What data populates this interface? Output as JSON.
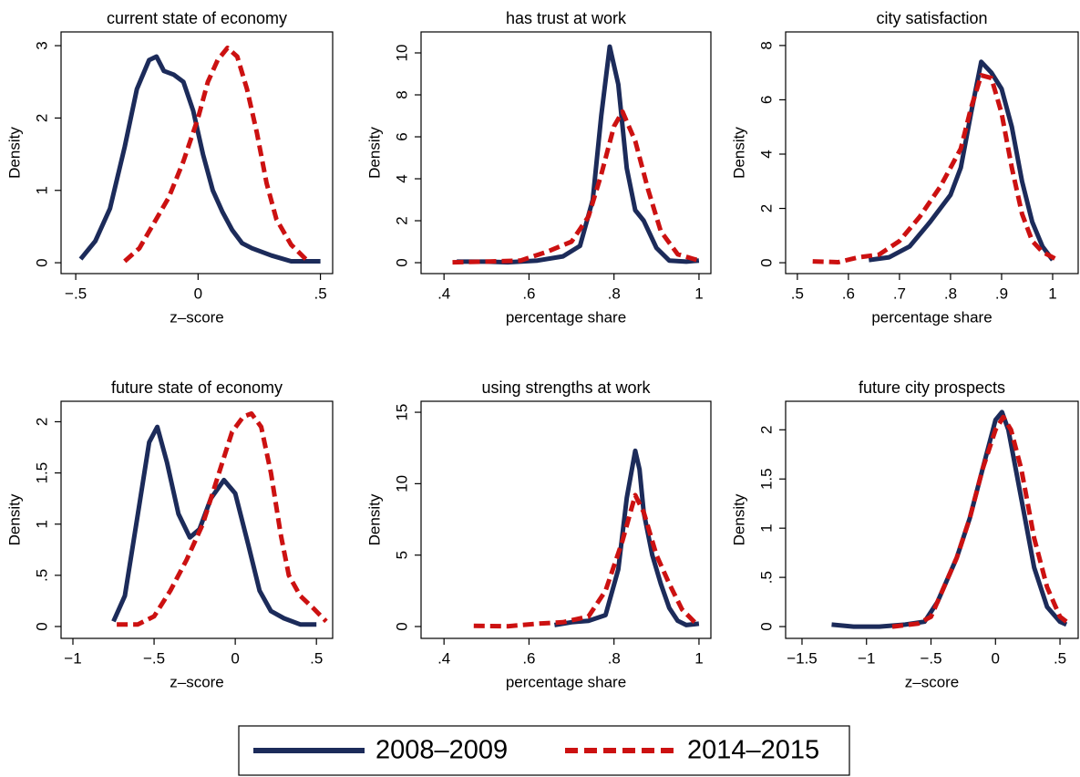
{
  "chart_data": [
    {
      "type": "line",
      "title": "current state of economy",
      "x_label": "z–score",
      "y_label": "Density",
      "xlim": [
        -0.56,
        0.55
      ],
      "ylim": [
        -0.15,
        3.19
      ],
      "xticks": [
        {
          "value": -0.5,
          "label": "−.5"
        },
        0,
        {
          "value": 0.5,
          "label": ".5"
        }
      ],
      "yticks": [
        0,
        1,
        2,
        3
      ],
      "series": [
        {
          "name": "2008–2009",
          "color": "#1c2b5a",
          "linestyle": "solid",
          "x": [
            -0.48,
            -0.42,
            -0.36,
            -0.3,
            -0.25,
            -0.2,
            -0.17,
            -0.14,
            -0.1,
            -0.06,
            -0.02,
            0.02,
            0.06,
            0.1,
            0.14,
            0.18,
            0.22,
            0.3,
            0.38,
            0.5
          ],
          "values": [
            0.05,
            0.3,
            0.75,
            1.6,
            2.4,
            2.8,
            2.85,
            2.65,
            2.6,
            2.5,
            2.1,
            1.5,
            1.0,
            0.7,
            0.45,
            0.27,
            0.2,
            0.1,
            0.02,
            0.02
          ]
        },
        {
          "name": "2014–2015",
          "color": "#cc1111",
          "linestyle": "dashed",
          "x": [
            -0.3,
            -0.24,
            -0.18,
            -0.12,
            -0.06,
            0,
            0.04,
            0.08,
            0.12,
            0.16,
            0.2,
            0.24,
            0.28,
            0.32,
            0.38,
            0.44
          ],
          "values": [
            0.02,
            0.2,
            0.55,
            0.9,
            1.4,
            2.0,
            2.5,
            2.8,
            2.97,
            2.85,
            2.4,
            1.8,
            1.1,
            0.6,
            0.25,
            0.05
          ]
        }
      ]
    },
    {
      "type": "line",
      "title": "has trust at work",
      "x_label": "percentage share",
      "y_label": "Density",
      "xlim": [
        0.346,
        1.028
      ],
      "ylim": [
        -0.52,
        11
      ],
      "xticks": [
        {
          "value": 0.4,
          "label": ".4"
        },
        {
          "value": 0.6,
          "label": ".6"
        },
        {
          "value": 0.8,
          "label": ".8"
        },
        1
      ],
      "yticks": [
        0,
        2,
        4,
        6,
        8,
        10
      ],
      "series": [
        {
          "color": "#1c2b5a",
          "linestyle": "solid",
          "x": [
            0.43,
            0.5,
            0.55,
            0.62,
            0.68,
            0.72,
            0.75,
            0.77,
            0.79,
            0.81,
            0.83,
            0.85,
            0.87,
            0.9,
            0.93,
            0.97,
            1.0
          ],
          "values": [
            0.05,
            0.05,
            0.02,
            0.1,
            0.3,
            0.8,
            3,
            7,
            10.3,
            8.5,
            4.5,
            2.5,
            2,
            0.7,
            0.1,
            0.05,
            0.1
          ]
        },
        {
          "color": "#cc1111",
          "linestyle": "dashed",
          "x": [
            0.42,
            0.5,
            0.58,
            0.64,
            0.7,
            0.74,
            0.77,
            0.8,
            0.82,
            0.85,
            0.88,
            0.91,
            0.95,
            1.0
          ],
          "values": [
            0.02,
            0.05,
            0.1,
            0.5,
            1.0,
            2.2,
            4.2,
            6.5,
            7.2,
            5.8,
            3.5,
            1.5,
            0.4,
            0.1
          ]
        }
      ]
    },
    {
      "type": "line",
      "title": "city satisfaction",
      "x_label": "percentage share",
      "y_label": "Density",
      "xlim": [
        0.477,
        1.05
      ],
      "ylim": [
        -0.4,
        8.5
      ],
      "xticks": [
        {
          "value": 0.5,
          "label": ".5"
        },
        {
          "value": 0.6,
          "label": ".6"
        },
        {
          "value": 0.7,
          "label": ".7"
        },
        {
          "value": 0.8,
          "label": ".8"
        },
        {
          "value": 0.9,
          "label": ".9"
        },
        1
      ],
      "yticks": [
        0,
        2,
        4,
        6,
        8
      ],
      "series": [
        {
          "color": "#1c2b5a",
          "linestyle": "solid",
          "x": [
            0.64,
            0.68,
            0.72,
            0.76,
            0.8,
            0.82,
            0.84,
            0.86,
            0.88,
            0.9,
            0.92,
            0.94,
            0.96,
            0.98,
            1.0
          ],
          "values": [
            0.1,
            0.2,
            0.6,
            1.5,
            2.5,
            3.5,
            5.5,
            7.4,
            7.0,
            6.4,
            5.0,
            3.0,
            1.5,
            0.6,
            0.1
          ]
        },
        {
          "color": "#cc1111",
          "linestyle": "dashed",
          "x": [
            0.53,
            0.58,
            0.62,
            0.66,
            0.7,
            0.74,
            0.78,
            0.82,
            0.84,
            0.86,
            0.88,
            0.9,
            0.92,
            0.94,
            0.96,
            0.98,
            1.01
          ],
          "values": [
            0.05,
            0.02,
            0.2,
            0.3,
            0.8,
            1.7,
            2.8,
            4.2,
            5.7,
            6.9,
            6.8,
            5.5,
            3.5,
            1.8,
            0.8,
            0.4,
            0.1
          ]
        }
      ]
    },
    {
      "type": "line",
      "title": "future state of economy",
      "x_label": "z–score",
      "y_label": "Density",
      "xlim": [
        -1.073,
        0.6
      ],
      "ylim": [
        -0.116,
        2.2
      ],
      "xticks": [
        {
          "value": -1,
          "label": "−1"
        },
        {
          "value": -0.5,
          "label": "−.5"
        },
        0,
        {
          "value": 0.5,
          "label": ".5"
        }
      ],
      "yticks": [
        0,
        {
          "value": 0.5,
          "label": ".5"
        },
        1,
        {
          "value": 1.5,
          "label": "1.5"
        },
        2
      ],
      "series": [
        {
          "color": "#1c2b5a",
          "linestyle": "solid",
          "x": [
            -0.75,
            -0.68,
            -0.6,
            -0.53,
            -0.48,
            -0.42,
            -0.35,
            -0.28,
            -0.22,
            -0.15,
            -0.07,
            0,
            0.08,
            0.15,
            0.22,
            0.3,
            0.4,
            0.5
          ],
          "values": [
            0.05,
            0.3,
            1.1,
            1.8,
            1.95,
            1.6,
            1.1,
            0.87,
            0.95,
            1.25,
            1.43,
            1.3,
            0.8,
            0.35,
            0.15,
            0.08,
            0.02,
            0.02
          ]
        },
        {
          "color": "#cc1111",
          "linestyle": "dashed",
          "x": [
            -0.73,
            -0.6,
            -0.5,
            -0.4,
            -0.3,
            -0.2,
            -0.1,
            -0.02,
            0.05,
            0.1,
            0.16,
            0.22,
            0.28,
            0.33,
            0.4,
            0.48,
            0.56
          ],
          "values": [
            0.02,
            0.02,
            0.1,
            0.35,
            0.65,
            1.0,
            1.5,
            1.9,
            2.05,
            2.08,
            1.95,
            1.5,
            0.9,
            0.5,
            0.3,
            0.18,
            0.05
          ]
        }
      ]
    },
    {
      "type": "line",
      "title": "using strengths at work",
      "x_label": "percentage share",
      "y_label": "Density",
      "xlim": [
        0.346,
        1.028
      ],
      "ylim": [
        -0.83,
        15.77
      ],
      "xticks": [
        {
          "value": 0.4,
          "label": ".4"
        },
        {
          "value": 0.6,
          "label": ".6"
        },
        {
          "value": 0.8,
          "label": ".8"
        },
        1
      ],
      "yticks": [
        0,
        5,
        10,
        15
      ],
      "series": [
        {
          "color": "#1c2b5a",
          "linestyle": "solid",
          "x": [
            0.66,
            0.7,
            0.74,
            0.78,
            0.81,
            0.83,
            0.85,
            0.86,
            0.87,
            0.89,
            0.91,
            0.93,
            0.95,
            0.97,
            1.0
          ],
          "values": [
            0.1,
            0.3,
            0.4,
            0.8,
            4,
            9,
            12.3,
            11,
            8,
            5,
            3,
            1.3,
            0.4,
            0.1,
            0.2
          ]
        },
        {
          "color": "#cc1111",
          "linestyle": "dashed",
          "x": [
            0.47,
            0.55,
            0.62,
            0.68,
            0.74,
            0.78,
            0.82,
            0.85,
            0.87,
            0.9,
            0.93,
            0.96,
            0.99
          ],
          "values": [
            0.05,
            0.02,
            0.2,
            0.3,
            0.7,
            2.5,
            6,
            9.2,
            8,
            5,
            3,
            1.2,
            0.3
          ]
        }
      ]
    },
    {
      "type": "line",
      "title": "future city prospects",
      "x_label": "z–score",
      "y_label": "Density",
      "xlim": [
        -1.627,
        0.641
      ],
      "ylim": [
        -0.12,
        2.29
      ],
      "xticks": [
        {
          "value": -1.5,
          "label": "−1.5"
        },
        {
          "value": -1,
          "label": "−1"
        },
        {
          "value": -0.5,
          "label": "−.5"
        },
        0,
        {
          "value": 0.5,
          "label": ".5"
        }
      ],
      "yticks": [
        0,
        {
          "value": 0.5,
          "label": ".5"
        },
        1,
        {
          "value": 1.5,
          "label": "1.5"
        },
        2
      ],
      "series": [
        {
          "color": "#1c2b5a",
          "linestyle": "solid",
          "x": [
            -1.27,
            -1.1,
            -0.9,
            -0.7,
            -0.55,
            -0.45,
            -0.3,
            -0.2,
            -0.1,
            0,
            0.05,
            0.1,
            0.2,
            0.3,
            0.4,
            0.5,
            0.55
          ],
          "values": [
            0.02,
            0,
            0,
            0.02,
            0.05,
            0.25,
            0.7,
            1.1,
            1.6,
            2.1,
            2.18,
            2.0,
            1.3,
            0.6,
            0.2,
            0.05,
            0.02
          ]
        },
        {
          "color": "#cc1111",
          "linestyle": "dashed",
          "x": [
            -0.8,
            -0.6,
            -0.5,
            -0.4,
            -0.3,
            -0.2,
            -0.1,
            0,
            0.06,
            0.12,
            0.2,
            0.3,
            0.4,
            0.5,
            0.58
          ],
          "values": [
            0,
            0.03,
            0.1,
            0.4,
            0.7,
            1.1,
            1.6,
            2.0,
            2.13,
            2.0,
            1.6,
            0.9,
            0.4,
            0.1,
            0.02
          ]
        }
      ]
    }
  ]
}
